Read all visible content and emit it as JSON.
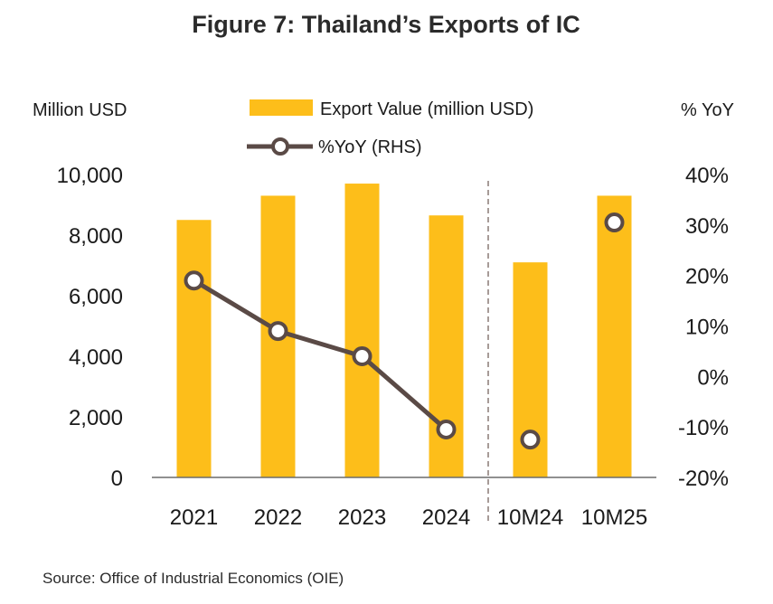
{
  "chart_data": {
    "type": "bar",
    "title": "Figure 7: Thailand’s Exports of IC",
    "categories": [
      "2021",
      "2022",
      "2023",
      "2024",
      "10M24",
      "10M25"
    ],
    "series": [
      {
        "name": "Export Value (million USD)",
        "type": "bar",
        "axis": "left",
        "color": "#FDBE1A",
        "values": [
          8500,
          9300,
          9700,
          8650,
          7100,
          9300
        ]
      },
      {
        "name": "%YoY (RHS)",
        "type": "line",
        "axis": "right",
        "color": "#5A4A46",
        "values": [
          19,
          9,
          4,
          -10.5,
          -12.5,
          30.5
        ],
        "connected_points": 4
      }
    ],
    "ylabel": "Million USD",
    "ylim": [
      0,
      10000
    ],
    "yticks": [
      "0",
      "2,000",
      "4,000",
      "6,000",
      "8,000",
      "10,000"
    ],
    "ytick_values": [
      0,
      2000,
      4000,
      6000,
      8000,
      10000
    ],
    "y2label": "% YoY",
    "y2lim": [
      -20,
      40
    ],
    "y2ticks": [
      "-20%",
      "-10%",
      "0%",
      "10%",
      "20%",
      "30%",
      "40%"
    ],
    "y2tick_values": [
      -20,
      -10,
      0,
      10,
      20,
      30,
      40
    ],
    "separator_after_category": "2024",
    "legend_position": "top-center",
    "grid": false
  },
  "source": "Source: Office of Industrial Economics (OIE)"
}
